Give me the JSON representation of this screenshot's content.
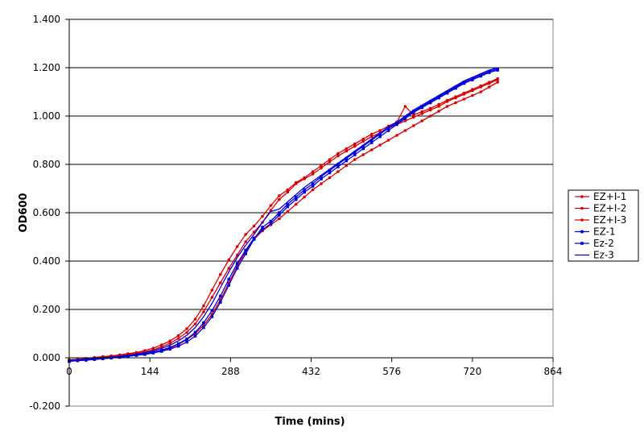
{
  "chart_data": {
    "type": "line",
    "title": "",
    "xlabel": "Time (mins)",
    "ylabel": "OD600",
    "xlim": [
      0,
      864
    ],
    "ylim": [
      -0.2,
      1.4
    ],
    "xticks": [
      0,
      144,
      288,
      432,
      576,
      720,
      864
    ],
    "xtick_labels": [
      "0",
      "144",
      "288",
      "432",
      "576",
      "720",
      "864"
    ],
    "yticks": [
      -0.2,
      0,
      0.2,
      0.4,
      0.6,
      0.8,
      1.0,
      1.2,
      1.4
    ],
    "ytick_labels": [
      "-0.200",
      "0.000",
      "0.200",
      "0.400",
      "0.600",
      "0.800",
      "1.000",
      "1.200",
      "1.400"
    ],
    "grid": "horizontal major gridlines",
    "legend_position": "right",
    "x": [
      0,
      15,
      30,
      45,
      60,
      75,
      90,
      105,
      120,
      135,
      150,
      165,
      180,
      195,
      210,
      225,
      240,
      255,
      270,
      285,
      300,
      315,
      330,
      345,
      360,
      375,
      390,
      405,
      420,
      435,
      450,
      465,
      480,
      495,
      510,
      525,
      540,
      555,
      570,
      585,
      600,
      615,
      630,
      645,
      660,
      675,
      690,
      705,
      720,
      735,
      750,
      765
    ],
    "series": [
      {
        "name": "EZ+I-1",
        "color": "#dd0000",
        "marker": "dot",
        "values": [
          -0.01,
          -0.008,
          -0.005,
          0,
          0.003,
          0.006,
          0.01,
          0.014,
          0.018,
          0.025,
          0.033,
          0.045,
          0.06,
          0.08,
          0.105,
          0.14,
          0.19,
          0.25,
          0.31,
          0.37,
          0.425,
          0.48,
          0.52,
          0.56,
          0.61,
          0.655,
          0.685,
          0.72,
          0.74,
          0.76,
          0.785,
          0.81,
          0.835,
          0.855,
          0.875,
          0.895,
          0.915,
          0.93,
          0.95,
          0.965,
          0.98,
          0.995,
          1.01,
          1.025,
          1.04,
          1.06,
          1.075,
          1.09,
          1.105,
          1.12,
          1.135,
          1.15
        ]
      },
      {
        "name": "EZ+I-2",
        "color": "#dd0000",
        "marker": "dot",
        "values": [
          -0.008,
          -0.006,
          -0.003,
          0.001,
          0.005,
          0.008,
          0.012,
          0.017,
          0.022,
          0.03,
          0.04,
          0.053,
          0.07,
          0.092,
          0.12,
          0.16,
          0.215,
          0.28,
          0.345,
          0.405,
          0.46,
          0.51,
          0.545,
          0.585,
          0.63,
          0.67,
          0.695,
          0.725,
          0.745,
          0.77,
          0.795,
          0.82,
          0.845,
          0.865,
          0.885,
          0.905,
          0.925,
          0.94,
          0.958,
          0.975,
          1.04,
          1.005,
          1.018,
          1.032,
          1.048,
          1.065,
          1.08,
          1.095,
          1.11,
          1.125,
          1.14,
          1.155
        ]
      },
      {
        "name": "EZ+I-3",
        "color": "#dd0000",
        "marker": "dot",
        "values": [
          -0.012,
          -0.01,
          -0.008,
          -0.004,
          -0.001,
          0.002,
          0.005,
          0.008,
          0.012,
          0.017,
          0.023,
          0.03,
          0.04,
          0.055,
          0.075,
          0.1,
          0.135,
          0.18,
          0.24,
          0.31,
          0.38,
          0.44,
          0.49,
          0.525,
          0.55,
          0.575,
          0.605,
          0.635,
          0.665,
          0.695,
          0.72,
          0.745,
          0.77,
          0.795,
          0.82,
          0.84,
          0.86,
          0.88,
          0.9,
          0.92,
          0.94,
          0.96,
          0.98,
          1.0,
          1.02,
          1.04,
          1.055,
          1.07,
          1.085,
          1.1,
          1.12,
          1.14
        ]
      },
      {
        "name": "EZ-1",
        "color": "#0000dd",
        "marker": "square",
        "values": [
          -0.015,
          -0.012,
          -0.01,
          -0.007,
          -0.004,
          -0.001,
          0.002,
          0.006,
          0.01,
          0.014,
          0.02,
          0.027,
          0.036,
          0.048,
          0.065,
          0.09,
          0.125,
          0.17,
          0.23,
          0.3,
          0.37,
          0.43,
          0.49,
          0.54,
          0.565,
          0.6,
          0.635,
          0.665,
          0.695,
          0.72,
          0.75,
          0.775,
          0.8,
          0.825,
          0.85,
          0.875,
          0.9,
          0.925,
          0.95,
          0.97,
          0.995,
          1.02,
          1.04,
          1.06,
          1.08,
          1.1,
          1.12,
          1.14,
          1.155,
          1.17,
          1.185,
          1.195
        ]
      },
      {
        "name": "Ez-2",
        "color": "#0000dd",
        "marker": "square",
        "values": [
          -0.013,
          -0.011,
          -0.008,
          -0.005,
          -0.002,
          0.001,
          0.004,
          0.008,
          0.012,
          0.017,
          0.024,
          0.032,
          0.043,
          0.058,
          0.078,
          0.105,
          0.145,
          0.195,
          0.255,
          0.325,
          0.39,
          0.445,
          0.495,
          0.53,
          0.555,
          0.59,
          0.625,
          0.655,
          0.685,
          0.71,
          0.74,
          0.765,
          0.79,
          0.815,
          0.84,
          0.865,
          0.89,
          0.915,
          0.94,
          0.965,
          0.99,
          1.015,
          1.035,
          1.055,
          1.075,
          1.095,
          1.115,
          1.135,
          1.15,
          1.165,
          1.18,
          1.19
        ]
      },
      {
        "name": "Ez-3",
        "color": "#0000dd",
        "marker": "none",
        "values": [
          -0.011,
          -0.009,
          -0.006,
          -0.003,
          0,
          0.003,
          0.006,
          0.01,
          0.015,
          0.021,
          0.029,
          0.039,
          0.052,
          0.07,
          0.093,
          0.125,
          0.17,
          0.225,
          0.29,
          0.355,
          0.415,
          0.465,
          0.51,
          0.56,
          0.605,
          0.615,
          0.645,
          0.675,
          0.705,
          0.73,
          0.755,
          0.78,
          0.805,
          0.83,
          0.855,
          0.88,
          0.905,
          0.93,
          0.955,
          0.975,
          1.0,
          1.025,
          1.045,
          1.065,
          1.085,
          1.105,
          1.125,
          1.145,
          1.16,
          1.175,
          1.19,
          1.2
        ]
      }
    ]
  }
}
